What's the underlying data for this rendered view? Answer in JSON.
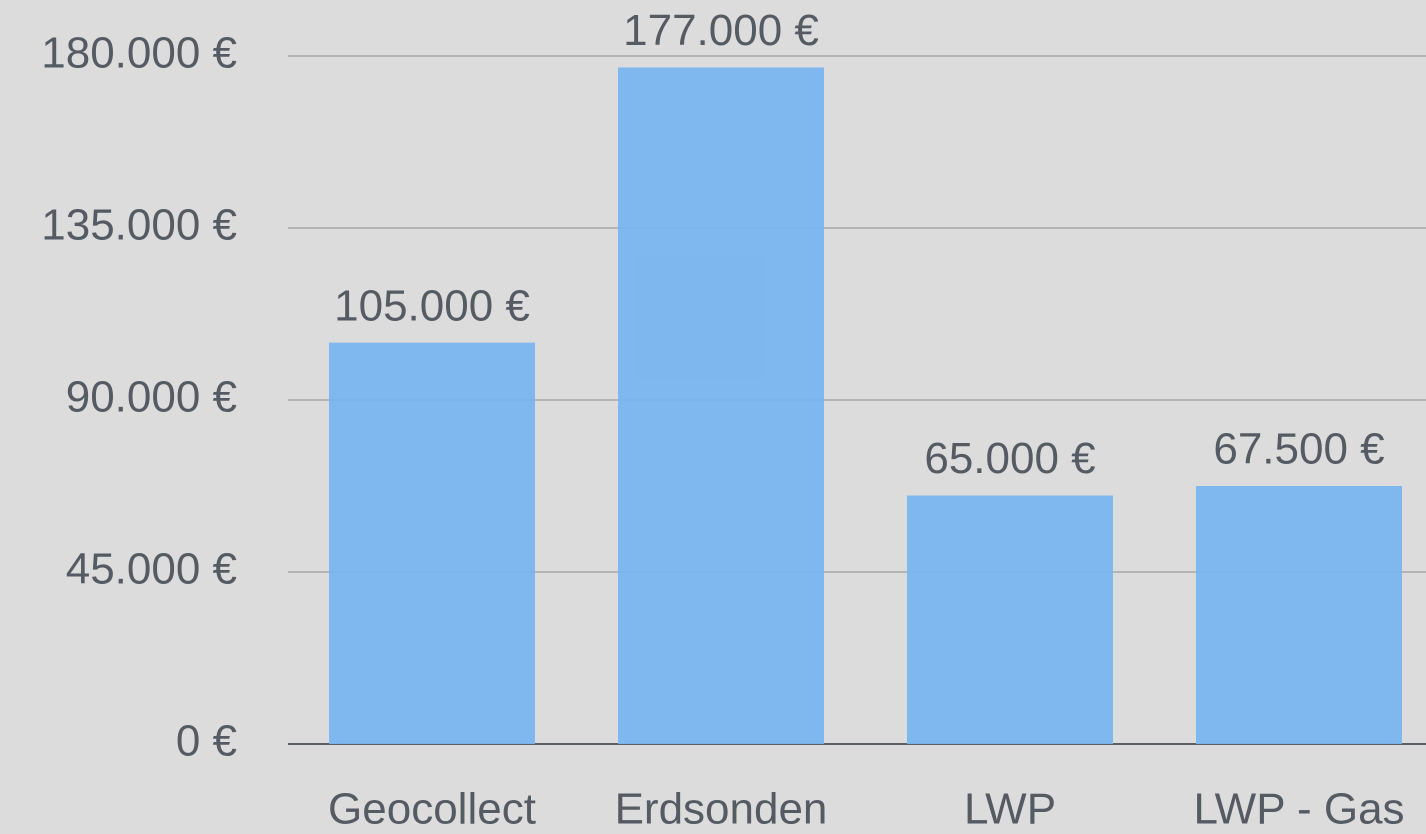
{
  "chart_data": {
    "type": "bar",
    "categories": [
      "Geocollect",
      "Erdsonden",
      "LWP",
      "LWP - Gas"
    ],
    "values": [
      105000,
      177000,
      65000,
      67500
    ],
    "value_labels": [
      "105.000 €",
      "177.000 €",
      "65.000 €",
      "67.500 €"
    ],
    "color": "#79b5ef",
    "ylim": [
      0,
      180000
    ],
    "yticks": [
      {
        "value": 0,
        "label": "0 €"
      },
      {
        "value": 45000,
        "label": "45.000 €"
      },
      {
        "value": 90000,
        "label": "90.000 €"
      },
      {
        "value": 135000,
        "label": "135.000 €"
      },
      {
        "value": 180000,
        "label": "180.000 €"
      }
    ],
    "grid": true
  }
}
